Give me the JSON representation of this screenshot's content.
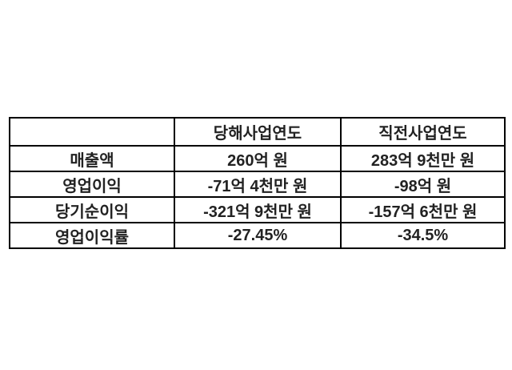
{
  "chart_data": {
    "type": "table",
    "title": "",
    "columns": [
      "",
      "당해사업연도",
      "직전사업연도"
    ],
    "rows": [
      {
        "label": "매출액",
        "values": [
          "260억 원",
          "283억 9천만 원"
        ]
      },
      {
        "label": "영업이익",
        "values": [
          "-71억 4천만 원",
          "-98억 원"
        ]
      },
      {
        "label": "당기순이익",
        "values": [
          "-321억 9천만 원",
          "-157억 6천만 원"
        ]
      },
      {
        "label": "영업이익률",
        "values": [
          "-27.45%",
          "-34.5%"
        ]
      }
    ],
    "layout_hints": {
      "grid": "all-borders",
      "alignment": "center",
      "header_row": true,
      "label_column": true
    }
  },
  "colors": {
    "background": "#ffffff",
    "border": "#000000",
    "text": "#222222"
  }
}
